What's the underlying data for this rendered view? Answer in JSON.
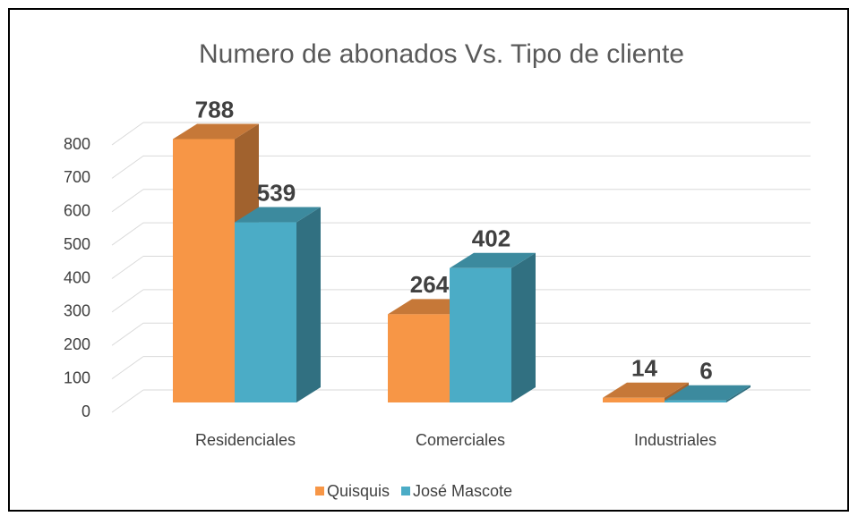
{
  "chart_data": {
    "type": "bar3d",
    "title": "Numero de abonados Vs. Tipo de cliente",
    "categories": [
      "Residenciales",
      "Comerciales",
      "Industriales"
    ],
    "series": [
      {
        "name": "Quisquis",
        "color": "#f79646",
        "values": [
          788,
          264,
          14
        ]
      },
      {
        "name": "José Mascote",
        "color": "#4bacc6",
        "values": [
          539,
          402,
          6
        ]
      }
    ],
    "ylim": [
      0,
      800
    ],
    "yticks": [
      0,
      100,
      200,
      300,
      400,
      500,
      600,
      700,
      800
    ],
    "grid": true,
    "legend": "bottom"
  }
}
